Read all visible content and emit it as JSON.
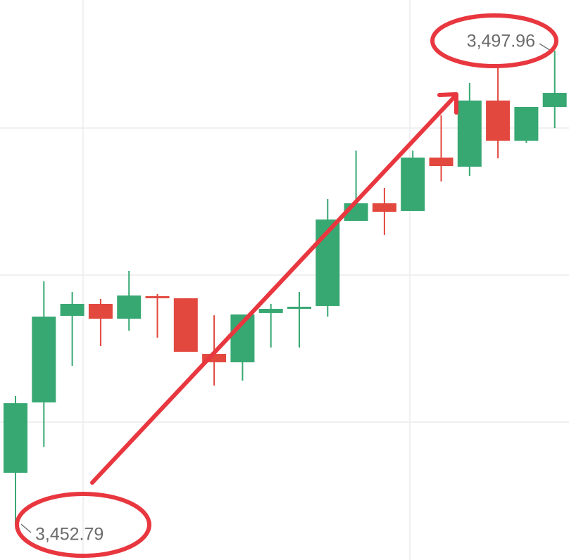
{
  "chart_data": {
    "type": "candlestick",
    "categories": [
      null,
      null,
      null,
      null,
      null,
      null,
      null,
      null,
      null,
      null,
      null,
      null,
      null,
      null,
      null,
      null,
      null,
      null,
      null,
      null
    ],
    "open": [
      3457.69,
      3464.4,
      3472.66,
      3473.8,
      3472.39,
      3474.54,
      3474.34,
      3469.03,
      3468.23,
      3472.93,
      3473.33,
      3473.6,
      3481.72,
      3483.4,
      3482.66,
      3487.76,
      3486.89,
      3493.2,
      3489.37,
      3492.59
    ],
    "high": [
      3465.01,
      3475.95,
      3474.94,
      3474.27,
      3476.95,
      3474.74,
      3474.34,
      3472.72,
      3472.79,
      3473.8,
      3474.94,
      3483.8,
      3488.43,
      3484.87,
      3488.43,
      3491.79,
      3494.87,
      3496.62,
      3492.59,
      3497.96
    ],
    "low": [
      3452.79,
      3460.17,
      3467.89,
      3469.77,
      3471.25,
      3470.58,
      3469.23,
      3466.01,
      3466.48,
      3469.64,
      3469.64,
      3472.59,
      3481.72,
      3480.38,
      3482.66,
      3485.48,
      3486.01,
      3487.69,
      3489.17,
      3490.58
    ],
    "close": [
      3464.33,
      3472.59,
      3473.8,
      3472.39,
      3474.6,
      3474.34,
      3469.23,
      3468.23,
      3472.79,
      3473.33,
      3473.53,
      3481.85,
      3483.4,
      3482.59,
      3487.76,
      3486.95,
      3493.2,
      3489.37,
      3492.59,
      3493.93
    ],
    "up_color": "#38a873",
    "down_color": "#e2483e",
    "ylim": [
      3449.37,
      3502.79
    ],
    "gridlines": [
      3462.52,
      3476.55,
      3490.58
    ],
    "annotations": [
      {
        "value": 3452.79,
        "label": "3,452.79"
      },
      {
        "value": 3497.96,
        "label": "3,497.96"
      }
    ]
  }
}
